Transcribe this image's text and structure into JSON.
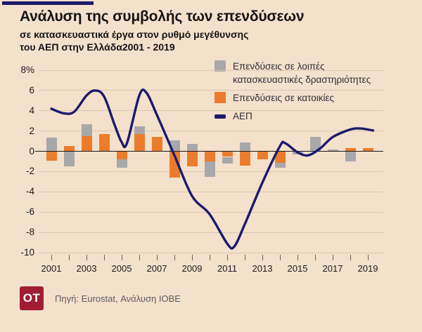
{
  "header": {
    "title": "Ανάλυση της συμβολής των επενδύσεων",
    "subtitle_line1": "σε κατασκευαστικά έργα στον ρυθμό μεγέθυνσης",
    "subtitle_line2": "του ΑΕΠ στην Ελλάδα2001 - 2019"
  },
  "legend": {
    "items": [
      {
        "label_line1": "Επενδύσεις σε λοιπές",
        "label_line2": "κατασκευαστικές δραστηριότητες",
        "color": "#a8a8aa",
        "swatch": "square"
      },
      {
        "label_line1": "Επενδύσεις σε κατοικίες",
        "color": "#ec7c2d",
        "swatch": "square"
      },
      {
        "label_line1": "ΑΕΠ",
        "color": "#1b1a6b",
        "swatch": "dash"
      }
    ]
  },
  "footer": {
    "logo_text": "OT",
    "logo_color": "#a01d33",
    "source": "Πηγή: Eurostat, Ανάλυση ΙΟΒΕ"
  },
  "colors": {
    "background": "#f4e1cc",
    "accent_bar": "#1b1a6b",
    "gridline": "#d9c6b0",
    "zero_axis": "#1a1a1a",
    "bar_other_construction": "#a8a8aa",
    "bar_housing": "#ec7c2d",
    "gdp_line": "#1b1a6b"
  },
  "chart_data": {
    "type": "bar+line combo (stacked contribution bars with GDP growth line)",
    "title": "Ανάλυση της συμβολής των επενδύσεων σε κατασκευαστικά έργα στον ρυθμό μεγέθυνσης του ΑΕΠ στην Ελλάδα 2001 - 2019",
    "ylabel": "percentage points / % growth",
    "ylim": [
      -10,
      8
    ],
    "grid": true,
    "legend_position": "top-right",
    "categories": [
      2001,
      2002,
      2003,
      2004,
      2005,
      2006,
      2007,
      2008,
      2009,
      2010,
      2011,
      2012,
      2013,
      2014,
      2015,
      2016,
      2017,
      2018,
      2019
    ],
    "bar_series": [
      {
        "name": "Επενδύσεις σε λοιπές κατασκευαστικές δραστηριότητες",
        "color": "#a8a8aa",
        "stack": "outer",
        "values": [
          1.35,
          -1.5,
          1.2,
          0,
          -0.8,
          0.75,
          0,
          1.1,
          0.7,
          -1.55,
          -0.65,
          0.9,
          0,
          -0.5,
          -0.3,
          1.4,
          0.15,
          -1.0,
          0
        ]
      },
      {
        "name": "Επενδύσεις σε κατοικίες",
        "color": "#ec7c2d",
        "stack": "inner",
        "values": [
          -0.9,
          0.55,
          1.5,
          1.7,
          -0.8,
          1.7,
          1.4,
          -2.6,
          -1.5,
          -1.0,
          -0.55,
          -1.4,
          -0.8,
          -1.15,
          0,
          0,
          0,
          0.35,
          0.35
        ]
      }
    ],
    "line_series": {
      "name": "ΑΕΠ",
      "color": "#1b1a6b",
      "points": [
        [
          2001,
          4.2
        ],
        [
          2001.7,
          3.75
        ],
        [
          2002.3,
          3.9
        ],
        [
          2003,
          5.5
        ],
        [
          2003.5,
          6.0
        ],
        [
          2004,
          5.4
        ],
        [
          2004.6,
          2.6
        ],
        [
          2005,
          0.9
        ],
        [
          2005.3,
          0.8
        ],
        [
          2006,
          5.5
        ],
        [
          2006.4,
          5.8
        ],
        [
          2007,
          3.6
        ],
        [
          2008,
          -0.4
        ],
        [
          2009,
          -4.4
        ],
        [
          2010,
          -6.2
        ],
        [
          2011,
          -9.1
        ],
        [
          2011.4,
          -9.4
        ],
        [
          2012,
          -7.2
        ],
        [
          2013,
          -3.1
        ],
        [
          2014,
          0.5
        ],
        [
          2014.3,
          0.8
        ],
        [
          2015,
          -0.1
        ],
        [
          2015.6,
          -0.4
        ],
        [
          2016.3,
          0.3
        ],
        [
          2017,
          1.4
        ],
        [
          2018,
          2.15
        ],
        [
          2018.6,
          2.25
        ],
        [
          2019.3,
          2.05
        ]
      ]
    },
    "yticks": [
      {
        "label": "8%",
        "value": 8
      },
      {
        "label": "6",
        "value": 6
      },
      {
        "label": "4",
        "value": 4
      },
      {
        "label": "2",
        "value": 2
      },
      {
        "label": "0",
        "value": 0
      },
      {
        "label": "-2",
        "value": -2
      },
      {
        "label": "-4",
        "value": -4
      },
      {
        "label": "-6",
        "value": -6
      },
      {
        "label": "-8",
        "value": -8
      },
      {
        "label": "-10",
        "value": -10
      }
    ],
    "xtick_labels": [
      "2001",
      "2003",
      "2005",
      "2007",
      "2009",
      "2011",
      "2013",
      "2015",
      "2017",
      "2019"
    ]
  }
}
